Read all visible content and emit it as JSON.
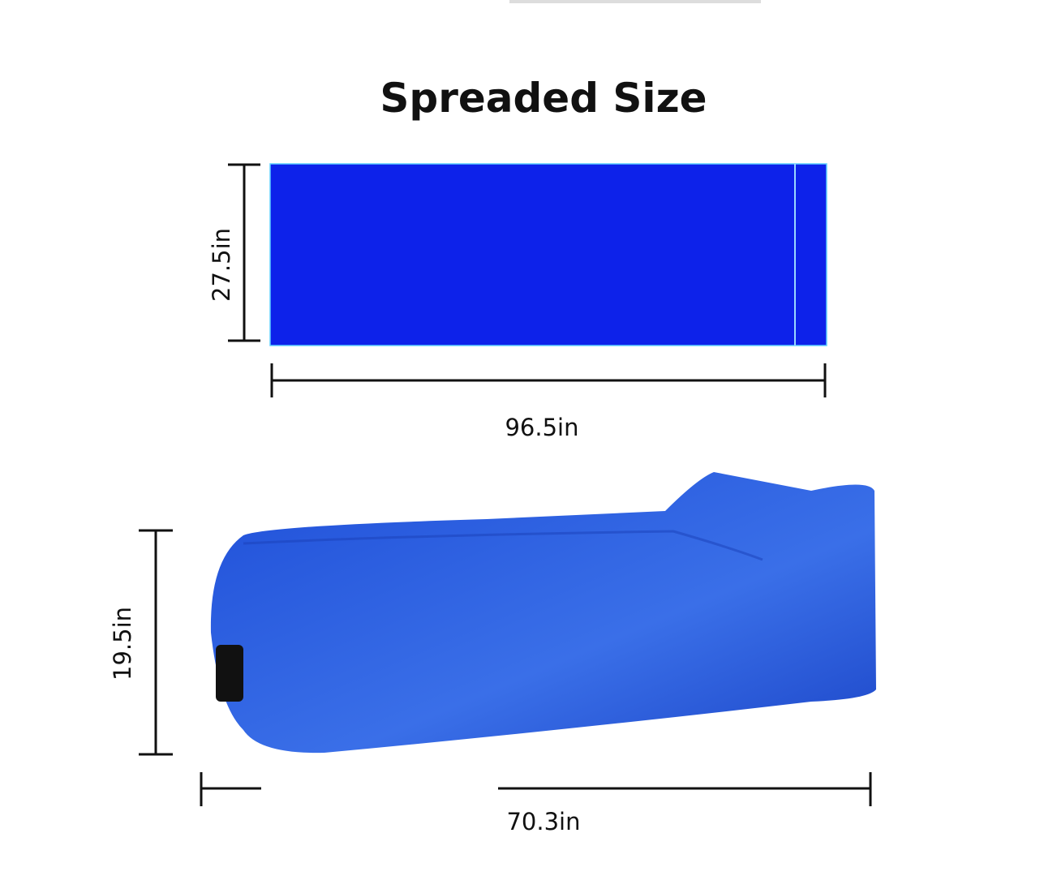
{
  "title": "Spreaded Size",
  "spread": {
    "height": "27.5in",
    "length": "96.5in"
  },
  "seated": {
    "height": "19.5in",
    "length": "70.3in"
  },
  "colors": {
    "mat": "#0d22ea",
    "sofa": "#2456d6"
  }
}
